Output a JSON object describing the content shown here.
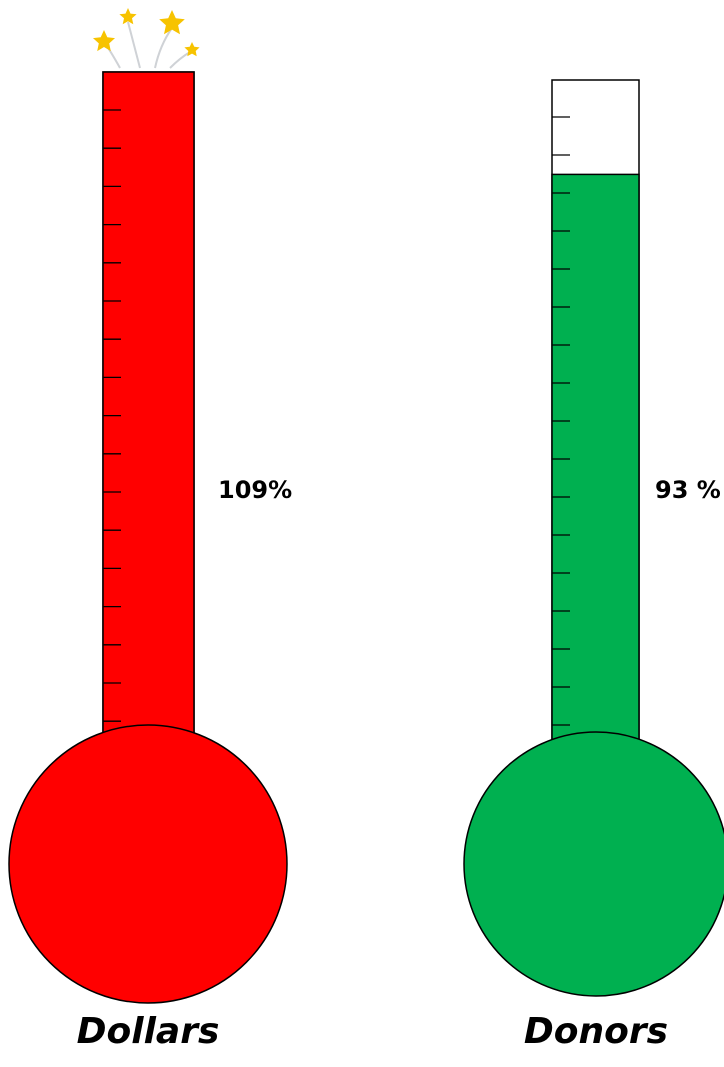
{
  "chart_data": [
    {
      "type": "thermometer",
      "category": "Dollars",
      "value_label": "109%",
      "percent": 109,
      "fill_color": "#ff0000",
      "ticks": 17,
      "over_goal_decoration": "stars-burst-icon"
    },
    {
      "type": "thermometer",
      "category": "Donors",
      "value_label": "93 %",
      "percent": 93,
      "fill_color": "#00b050",
      "ticks": 17
    }
  ]
}
